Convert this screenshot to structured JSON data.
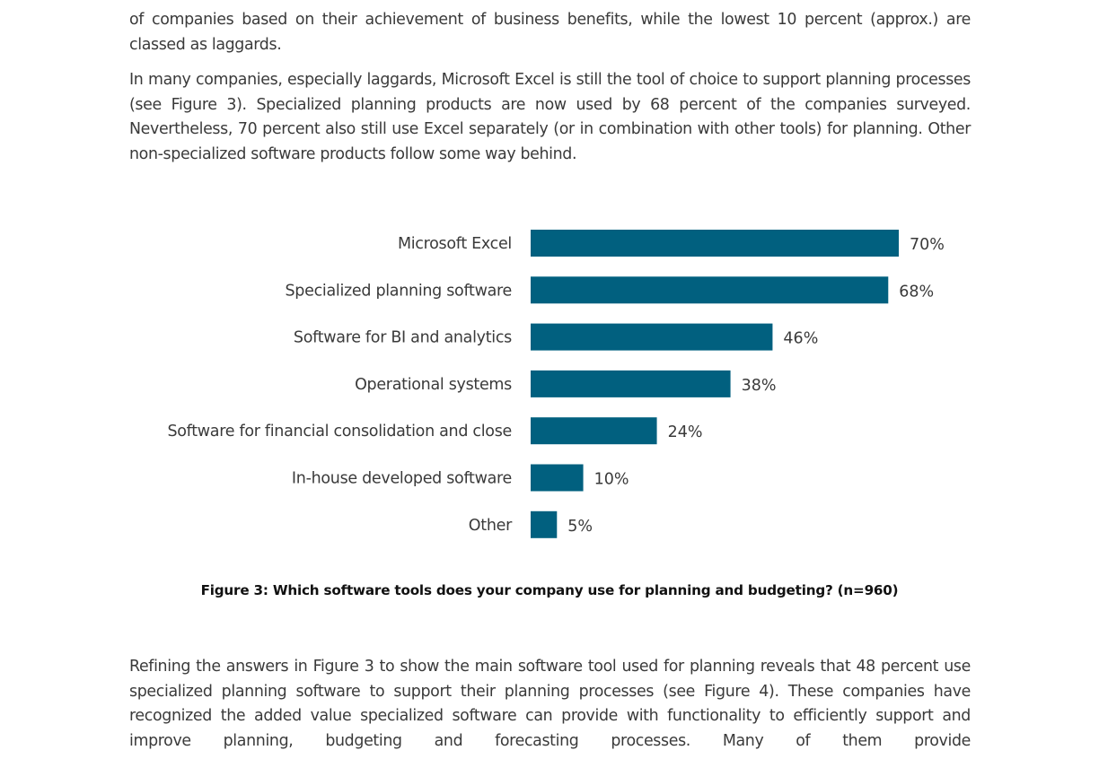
{
  "paragraphs": {
    "p1": "of companies based on their achievement of business benefits, while the lowest 10 percent (approx.) are classed as laggards.",
    "p2": "In many companies, especially laggards, Microsoft Excel is still the tool of choice to support planning processes (see Figure 3). Specialized planning products are now used by 68 percent of the companies surveyed. Nevertheless, 70 percent also still use Excel separately (or in combination with other tools) for planning. Other non-specialized software products follow some way behind.",
    "p3": "Refining the answers in Figure 3 to show the main software tool used for planning reveals that 48 percent use specialized planning software to support their planning processes (see Figure 4). These companies have recognized the added value specialized software can provide with functionality to efficiently support and improve planning, budgeting and forecasting processes. Many of them provide"
  },
  "figure": {
    "caption": "Figure 3: Which software tools does your company use for planning and budgeting? (n=960)"
  },
  "chart_data": {
    "type": "bar",
    "orientation": "horizontal",
    "title": "Figure 3: Which software tools does your company use for planning and budgeting? (n=960)",
    "categories": [
      "Microsoft Excel",
      "Specialized planning software",
      "Software for BI and analytics",
      "Operational systems",
      "Software for financial consolidation and close",
      "In-house developed software",
      "Other"
    ],
    "values": [
      70,
      68,
      46,
      38,
      24,
      10,
      5
    ],
    "value_labels": [
      "70%",
      "68%",
      "46%",
      "38%",
      "24%",
      "10%",
      "5%"
    ],
    "unit": "%",
    "xlabel": "",
    "ylabel": "",
    "xlim": [
      0,
      100
    ],
    "grid": false,
    "legend": "none",
    "bar_color": "#01607f"
  }
}
